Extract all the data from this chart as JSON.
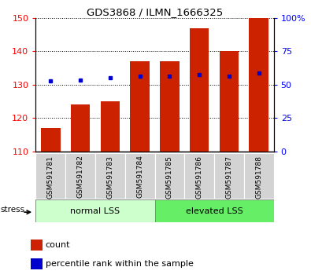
{
  "title": "GDS3868 / ILMN_1666325",
  "categories": [
    "GSM591781",
    "GSM591782",
    "GSM591783",
    "GSM591784",
    "GSM591785",
    "GSM591786",
    "GSM591787",
    "GSM591788"
  ],
  "bar_values": [
    117,
    124,
    125,
    137,
    137,
    147,
    140,
    150
  ],
  "percentile_values": [
    131.2,
    131.5,
    132.0,
    132.5,
    132.5,
    133.0,
    132.5,
    133.5
  ],
  "bar_color": "#cc2200",
  "percentile_color": "#0000cc",
  "ymin": 110,
  "ymax": 150,
  "y_right_ticks": [
    0,
    25,
    50,
    75,
    100
  ],
  "y_left_ticks": [
    110,
    120,
    130,
    140,
    150
  ],
  "grid_values": [
    120,
    130,
    140,
    150
  ],
  "group1_label": "normal LSS",
  "group2_label": "elevated LSS",
  "group1_color": "#ccffcc",
  "group2_color": "#66ee66",
  "stress_label": "stress",
  "legend_count": "count",
  "legend_percentile": "percentile rank within the sample",
  "bar_bottom": 110,
  "bar_color_legend": "#cc2200",
  "percentile_color_legend": "#0000cc"
}
